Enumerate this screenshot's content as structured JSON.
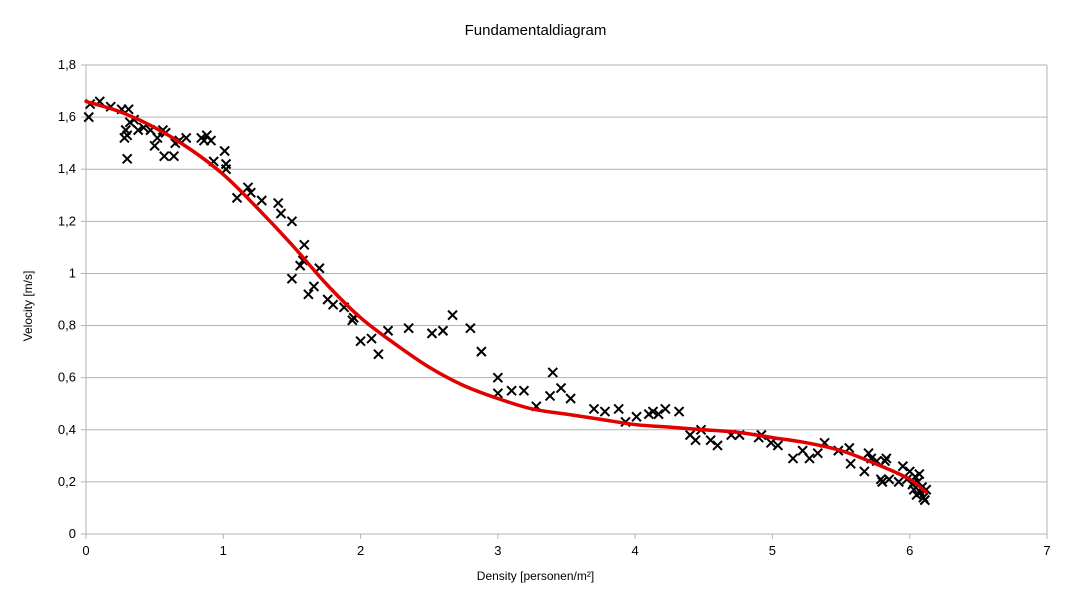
{
  "chart_data": {
    "type": "scatter",
    "title": "Fundamentaldiagram",
    "xlabel": "Density [personen/m²]",
    "ylabel": "Velocity [m/s]",
    "xlim": [
      0,
      7
    ],
    "ylim": [
      0,
      1.8
    ],
    "x_ticks": [
      "0",
      "1",
      "2",
      "3",
      "4",
      "5",
      "6",
      "7"
    ],
    "y_ticks": [
      "0",
      "0,2",
      "0,4",
      "0,6",
      "0,8",
      "1",
      "1,2",
      "1,4",
      "1,6",
      "1,8"
    ],
    "grid": "horizontal",
    "legend": "none",
    "series": [
      {
        "marker": "x",
        "color": "#000000",
        "points": [
          [
            0.02,
            1.6
          ],
          [
            0.03,
            1.65
          ],
          [
            0.1,
            1.66
          ],
          [
            0.18,
            1.64
          ],
          [
            0.26,
            1.63
          ],
          [
            0.28,
            1.52
          ],
          [
            0.29,
            1.55
          ],
          [
            0.3,
            1.53
          ],
          [
            0.3,
            1.44
          ],
          [
            0.31,
            1.63
          ],
          [
            0.32,
            1.58
          ],
          [
            0.35,
            1.59
          ],
          [
            0.38,
            1.55
          ],
          [
            0.42,
            1.56
          ],
          [
            0.47,
            1.55
          ],
          [
            0.5,
            1.49
          ],
          [
            0.52,
            1.52
          ],
          [
            0.56,
            1.55
          ],
          [
            0.57,
            1.45
          ],
          [
            0.58,
            1.54
          ],
          [
            0.64,
            1.45
          ],
          [
            0.65,
            1.5
          ],
          [
            0.68,
            1.51
          ],
          [
            0.73,
            1.52
          ],
          [
            0.84,
            1.52
          ],
          [
            0.86,
            1.51
          ],
          [
            0.88,
            1.53
          ],
          [
            0.91,
            1.51
          ],
          [
            0.93,
            1.43
          ],
          [
            1.01,
            1.47
          ],
          [
            1.02,
            1.4
          ],
          [
            1.02,
            1.42
          ],
          [
            1.1,
            1.29
          ],
          [
            1.18,
            1.33
          ],
          [
            1.2,
            1.31
          ],
          [
            1.28,
            1.28
          ],
          [
            1.4,
            1.27
          ],
          [
            1.42,
            1.23
          ],
          [
            1.5,
            1.2
          ],
          [
            1.5,
            0.98
          ],
          [
            1.56,
            1.03
          ],
          [
            1.58,
            1.05
          ],
          [
            1.59,
            1.11
          ],
          [
            1.62,
            0.92
          ],
          [
            1.66,
            0.95
          ],
          [
            1.7,
            1.02
          ],
          [
            1.76,
            0.9
          ],
          [
            1.8,
            0.88
          ],
          [
            1.88,
            0.87
          ],
          [
            1.94,
            0.82
          ],
          [
            1.95,
            0.83
          ],
          [
            2.0,
            0.74
          ],
          [
            2.08,
            0.75
          ],
          [
            2.13,
            0.69
          ],
          [
            2.2,
            0.78
          ],
          [
            2.35,
            0.79
          ],
          [
            2.52,
            0.77
          ],
          [
            2.6,
            0.78
          ],
          [
            2.67,
            0.84
          ],
          [
            2.8,
            0.79
          ],
          [
            2.88,
            0.7
          ],
          [
            3.0,
            0.6
          ],
          [
            3.0,
            0.54
          ],
          [
            3.1,
            0.55
          ],
          [
            3.19,
            0.55
          ],
          [
            3.28,
            0.49
          ],
          [
            3.38,
            0.53
          ],
          [
            3.4,
            0.62
          ],
          [
            3.46,
            0.56
          ],
          [
            3.53,
            0.52
          ],
          [
            3.7,
            0.48
          ],
          [
            3.78,
            0.47
          ],
          [
            3.88,
            0.48
          ],
          [
            3.93,
            0.43
          ],
          [
            4.01,
            0.45
          ],
          [
            4.1,
            0.46
          ],
          [
            4.13,
            0.47
          ],
          [
            4.17,
            0.46
          ],
          [
            4.22,
            0.48
          ],
          [
            4.32,
            0.47
          ],
          [
            4.4,
            0.38
          ],
          [
            4.44,
            0.36
          ],
          [
            4.48,
            0.4
          ],
          [
            4.55,
            0.36
          ],
          [
            4.6,
            0.34
          ],
          [
            4.7,
            0.38
          ],
          [
            4.76,
            0.38
          ],
          [
            4.9,
            0.37
          ],
          [
            4.92,
            0.38
          ],
          [
            4.99,
            0.35
          ],
          [
            5.04,
            0.34
          ],
          [
            5.15,
            0.29
          ],
          [
            5.22,
            0.32
          ],
          [
            5.27,
            0.29
          ],
          [
            5.33,
            0.31
          ],
          [
            5.38,
            0.35
          ],
          [
            5.48,
            0.32
          ],
          [
            5.56,
            0.33
          ],
          [
            5.57,
            0.27
          ],
          [
            5.67,
            0.24
          ],
          [
            5.7,
            0.31
          ],
          [
            5.72,
            0.29
          ],
          [
            5.76,
            0.28
          ],
          [
            5.79,
            0.21
          ],
          [
            5.8,
            0.2
          ],
          [
            5.82,
            0.28
          ],
          [
            5.83,
            0.29
          ],
          [
            5.85,
            0.21
          ],
          [
            5.92,
            0.2
          ],
          [
            5.95,
            0.26
          ],
          [
            5.98,
            0.21
          ],
          [
            6.0,
            0.24
          ],
          [
            6.02,
            0.19
          ],
          [
            6.03,
            0.17
          ],
          [
            6.04,
            0.22
          ],
          [
            6.05,
            0.15
          ],
          [
            6.06,
            0.2
          ],
          [
            6.07,
            0.23
          ],
          [
            6.08,
            0.16
          ],
          [
            6.09,
            0.18
          ],
          [
            6.1,
            0.14
          ],
          [
            6.11,
            0.13
          ],
          [
            6.12,
            0.17
          ]
        ]
      },
      {
        "type": "line",
        "color": "#e00000",
        "points": [
          [
            0.0,
            1.66
          ],
          [
            0.25,
            1.62
          ],
          [
            0.5,
            1.56
          ],
          [
            0.75,
            1.48
          ],
          [
            1.0,
            1.38
          ],
          [
            1.25,
            1.25
          ],
          [
            1.5,
            1.11
          ],
          [
            1.75,
            0.96
          ],
          [
            2.0,
            0.83
          ],
          [
            2.25,
            0.73
          ],
          [
            2.5,
            0.64
          ],
          [
            2.75,
            0.57
          ],
          [
            3.0,
            0.52
          ],
          [
            3.25,
            0.48
          ],
          [
            3.5,
            0.46
          ],
          [
            3.75,
            0.44
          ],
          [
            4.0,
            0.42
          ],
          [
            4.25,
            0.41
          ],
          [
            4.5,
            0.4
          ],
          [
            4.75,
            0.39
          ],
          [
            5.0,
            0.37
          ],
          [
            5.25,
            0.35
          ],
          [
            5.5,
            0.32
          ],
          [
            5.75,
            0.27
          ],
          [
            6.0,
            0.21
          ],
          [
            6.12,
            0.16
          ]
        ]
      }
    ]
  }
}
